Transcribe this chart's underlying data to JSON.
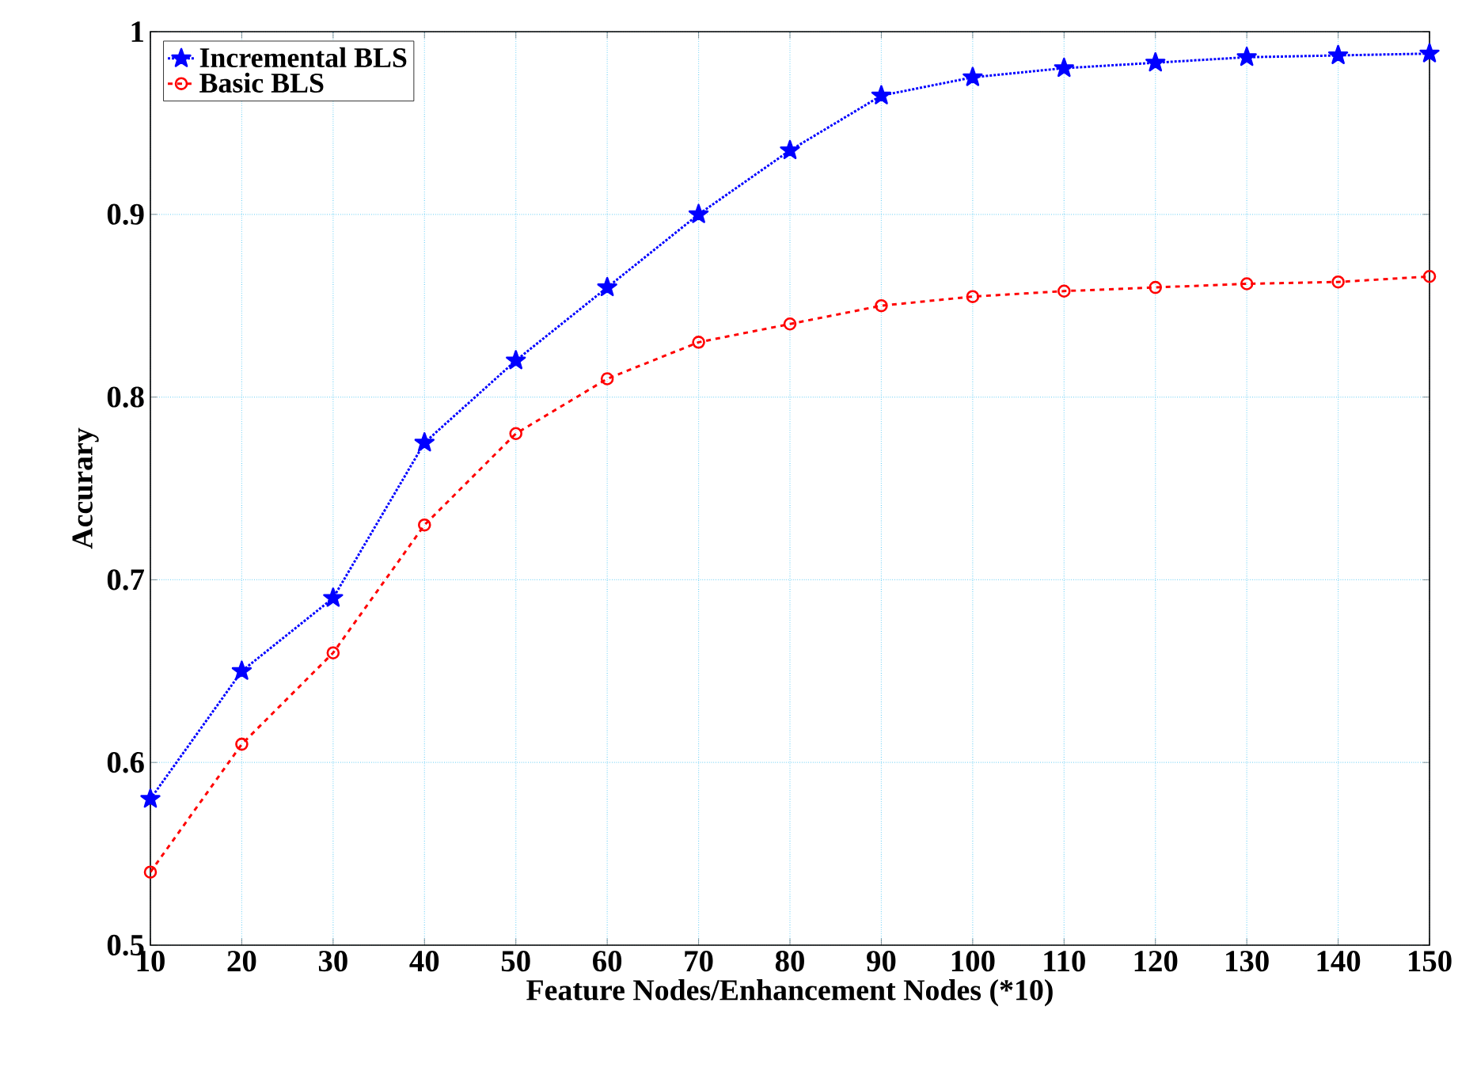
{
  "chart_data": {
    "type": "line",
    "xlabel": "Feature Nodes/Enhancement Nodes (*10)",
    "ylabel": "Accurary",
    "x": [
      10,
      20,
      30,
      40,
      50,
      60,
      70,
      80,
      90,
      100,
      110,
      120,
      130,
      140,
      150
    ],
    "series": [
      {
        "name": "Incremental BLS",
        "color": "#0000ff",
        "marker": "star",
        "line_style": "dotted",
        "values": [
          0.58,
          0.65,
          0.69,
          0.775,
          0.82,
          0.86,
          0.9,
          0.935,
          0.965,
          0.975,
          0.98,
          0.983,
          0.986,
          0.987,
          0.988
        ]
      },
      {
        "name": "Basic BLS",
        "color": "#ff0000",
        "marker": "circle",
        "line_style": "dashed",
        "values": [
          0.54,
          0.61,
          0.66,
          0.73,
          0.78,
          0.81,
          0.83,
          0.84,
          0.85,
          0.855,
          0.858,
          0.86,
          0.862,
          0.863,
          0.866
        ]
      }
    ],
    "xlim": [
      10,
      150
    ],
    "ylim": [
      0.5,
      1
    ],
    "xticks": [
      10,
      20,
      30,
      40,
      50,
      60,
      70,
      80,
      90,
      100,
      110,
      120,
      130,
      140,
      150
    ],
    "yticks": [
      0.5,
      0.6,
      0.7,
      0.8,
      0.9,
      1
    ],
    "grid": true,
    "legend": "top left"
  }
}
